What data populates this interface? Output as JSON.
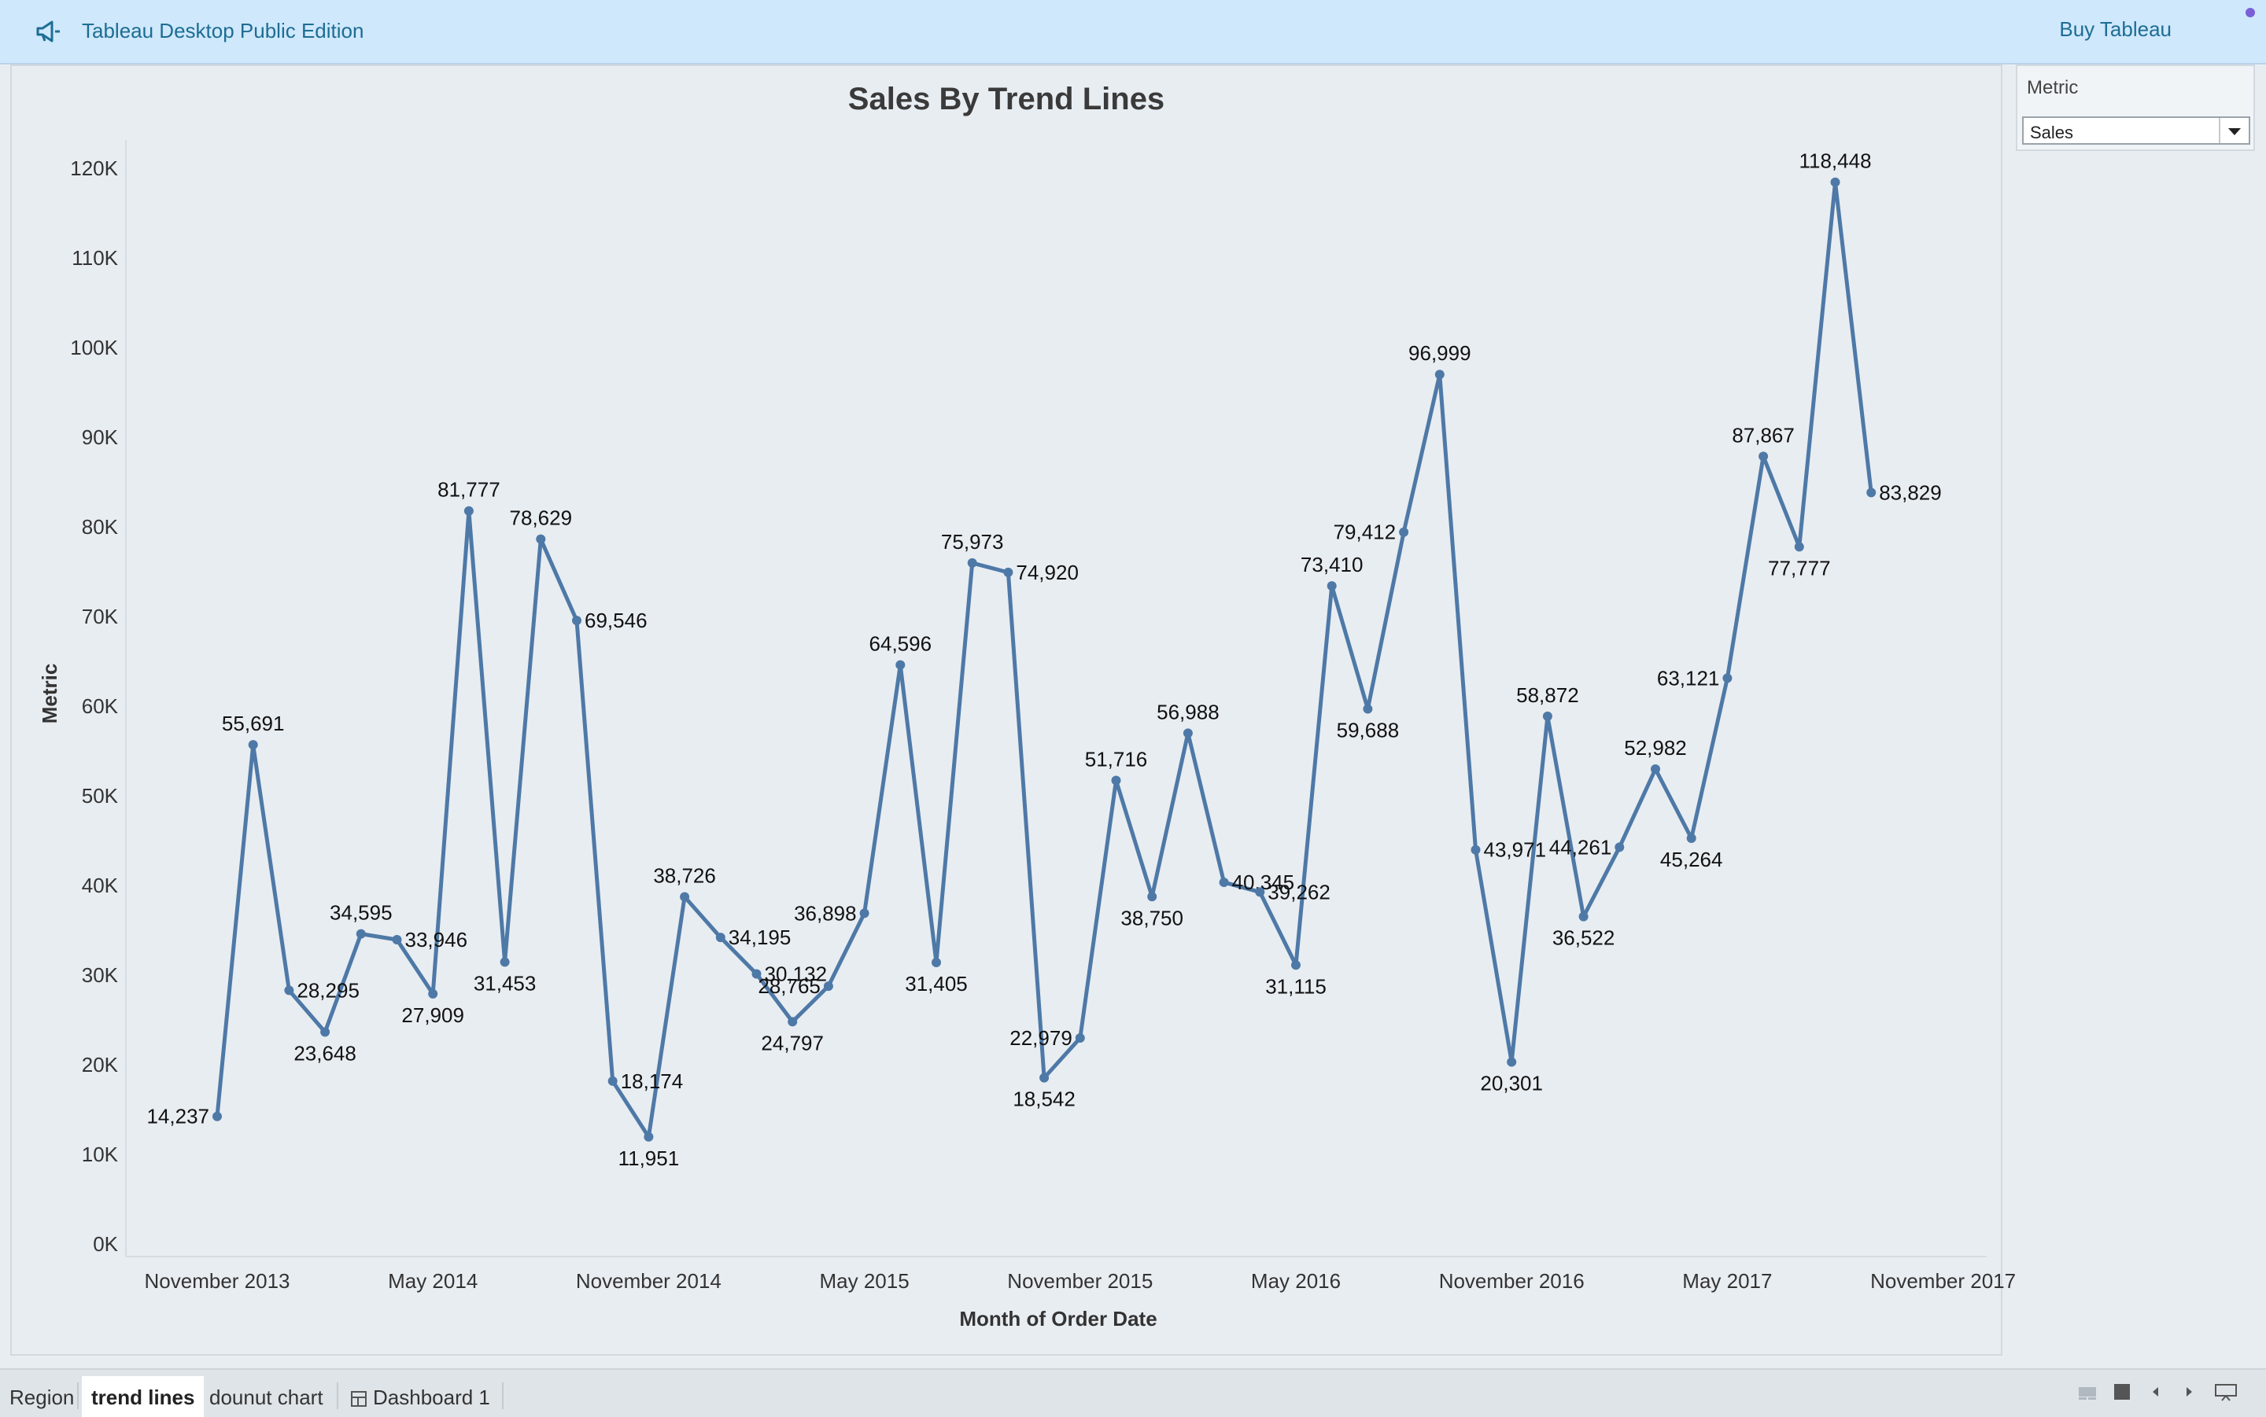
{
  "app": {
    "title": "Tableau Desktop Public Edition",
    "buy_label": "Buy Tableau"
  },
  "filter": {
    "title": "Metric",
    "selected": "Sales"
  },
  "tabs": [
    {
      "label": "Region",
      "active": false
    },
    {
      "label": "trend lines",
      "active": true
    },
    {
      "label": "dounut chart",
      "active": false
    },
    {
      "label": "Dashboard 1",
      "active": false
    }
  ],
  "colors": {
    "line": "#4e79a7",
    "background": "#e8edf2"
  },
  "chart_data": {
    "type": "line",
    "title": "Sales By Trend Lines",
    "xlabel": "Month of Order Date",
    "ylabel": "Metric",
    "ylim": [
      0,
      125000
    ],
    "y_ticks": [
      "0K",
      "10K",
      "20K",
      "30K",
      "40K",
      "50K",
      "60K",
      "70K",
      "80K",
      "90K",
      "100K",
      "110K",
      "120K"
    ],
    "x_ticks": [
      "November 2013",
      "May 2014",
      "November 2014",
      "May 2015",
      "November 2015",
      "May 2016",
      "November 2016",
      "May 2017",
      "November 2017"
    ],
    "grid": false,
    "series": [
      {
        "values": [
          14237,
          55691,
          28295,
          23648,
          34595,
          33946,
          27909,
          81777,
          31453,
          78629,
          69546,
          18174,
          11951,
          38726,
          34195,
          30132,
          24797,
          28765,
          36898,
          64596,
          31405,
          75973,
          74920,
          18542,
          22979,
          51716,
          38750,
          56988,
          40345,
          39262,
          31115,
          73410,
          59688,
          79412,
          96999,
          43971,
          20301,
          58872,
          36522,
          44261,
          52982,
          45264,
          63121,
          87867,
          77777,
          118448,
          83829
        ],
        "labels": [
          "14,237",
          "55,691",
          "28,295",
          "23,648",
          "34,595",
          "33,946",
          "27,909",
          "81,777",
          "31,453",
          "78,629",
          "69,546",
          "18,174",
          "11,951",
          "38,726",
          "34,195",
          "30,132",
          "24,797",
          "28,765",
          "36,898",
          "64,596",
          "31,405",
          "75,973",
          "74,920",
          "18,542",
          "22,979",
          "51,716",
          "38,750",
          "56,988",
          "40,345",
          "39,262",
          "31,115",
          "73,410",
          "59,688",
          "79,412",
          "96,999",
          "43,971",
          "20,301",
          "58,872",
          "36,522",
          "44,261",
          "52,982",
          "45,264",
          "63,121",
          "87,867",
          "77,777",
          "118,448",
          "83,829"
        ]
      }
    ]
  }
}
